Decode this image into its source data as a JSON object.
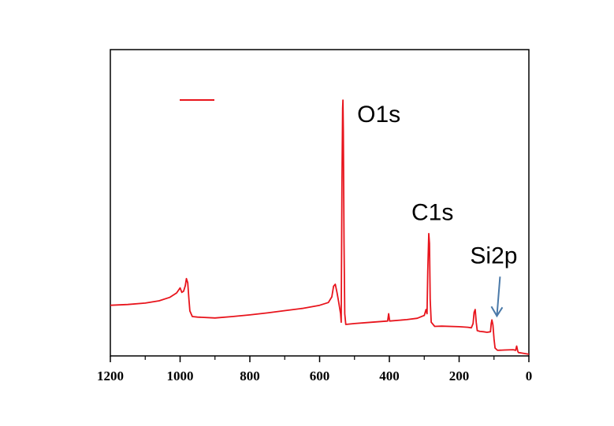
{
  "chart_data": {
    "type": "line",
    "title": "",
    "xlabel": "",
    "ylabel": "",
    "x_reversed": true,
    "xlim": [
      1200,
      0
    ],
    "ylim": [
      0,
      100
    ],
    "grid": false,
    "x_ticks": [
      1200,
      1000,
      800,
      600,
      400,
      200,
      0
    ],
    "x_tick_labels": [
      "1200",
      "1000",
      "800",
      "600",
      "400",
      "200",
      "0"
    ],
    "legend": {
      "placement": "top-left",
      "entries": [
        {
          "label": "",
          "color": "#e8141c"
        }
      ]
    },
    "series": [
      {
        "color": "#e8141c",
        "points": [
          [
            1200,
            18.0
          ],
          [
            1150,
            18.3
          ],
          [
            1100,
            18.8
          ],
          [
            1060,
            19.6
          ],
          [
            1030,
            20.8
          ],
          [
            1010,
            22.4
          ],
          [
            1000,
            24.2
          ],
          [
            995,
            22.6
          ],
          [
            990,
            23.0
          ],
          [
            985,
            25.0
          ],
          [
            982,
            27.5
          ],
          [
            978,
            26.0
          ],
          [
            975,
            20.5
          ],
          [
            972,
            16.0
          ],
          [
            965,
            14.0
          ],
          [
            950,
            13.8
          ],
          [
            900,
            13.5
          ],
          [
            850,
            14.0
          ],
          [
            800,
            14.6
          ],
          [
            750,
            15.3
          ],
          [
            700,
            16.1
          ],
          [
            650,
            16.9
          ],
          [
            600,
            18.0
          ],
          [
            575,
            19.0
          ],
          [
            565,
            21.0
          ],
          [
            560,
            24.8
          ],
          [
            555,
            25.5
          ],
          [
            550,
            22.5
          ],
          [
            545,
            19.0
          ],
          [
            540,
            15.0
          ],
          [
            538,
            12.0
          ],
          [
            536,
            60.0
          ],
          [
            534,
            88.0
          ],
          [
            533,
            91.0
          ],
          [
            532,
            80.0
          ],
          [
            530,
            40.0
          ],
          [
            528,
            15.0
          ],
          [
            525,
            11.2
          ],
          [
            500,
            11.5
          ],
          [
            450,
            12.0
          ],
          [
            405,
            12.4
          ],
          [
            402,
            15.0
          ],
          [
            399,
            12.4
          ],
          [
            350,
            12.9
          ],
          [
            320,
            13.4
          ],
          [
            300,
            14.4
          ],
          [
            295,
            16.5
          ],
          [
            292,
            15.0
          ],
          [
            290,
            30.0
          ],
          [
            287,
            43.5
          ],
          [
            285,
            40.0
          ],
          [
            283,
            20.0
          ],
          [
            280,
            12.0
          ],
          [
            270,
            10.5
          ],
          [
            250,
            10.6
          ],
          [
            200,
            10.4
          ],
          [
            175,
            10.2
          ],
          [
            165,
            10.0
          ],
          [
            160,
            11.5
          ],
          [
            157,
            15.5
          ],
          [
            154,
            16.5
          ],
          [
            151,
            12.0
          ],
          [
            148,
            9.0
          ],
          [
            140,
            8.7
          ],
          [
            130,
            8.6
          ],
          [
            120,
            8.4
          ],
          [
            110,
            8.6
          ],
          [
            108,
            11.5
          ],
          [
            106,
            12.8
          ],
          [
            103,
            11.0
          ],
          [
            100,
            6.0
          ],
          [
            97,
            2.8
          ],
          [
            90,
            2.0
          ],
          [
            70,
            2.1
          ],
          [
            45,
            2.2
          ],
          [
            38,
            2.0
          ],
          [
            35,
            3.5
          ],
          [
            32,
            1.8
          ],
          [
            30,
            1.2
          ],
          [
            20,
            1.0
          ],
          [
            10,
            0.8
          ],
          [
            0,
            0.6
          ]
        ]
      }
    ],
    "annotations": [
      {
        "text": "O1s",
        "x": 533,
        "y": 91.0
      },
      {
        "text": "C1s",
        "x": 287,
        "y": 43.5
      },
      {
        "text": "Si2p",
        "x": 103,
        "y": 12.8,
        "arrow": true,
        "arrow_color": "#4a79a8"
      }
    ]
  }
}
